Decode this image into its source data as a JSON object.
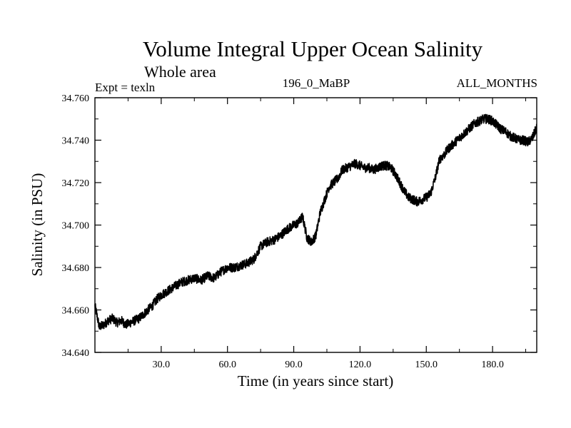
{
  "chart_data": {
    "type": "line",
    "title": "Volume Integral Upper Ocean Salinity",
    "subtitle": "Whole area",
    "header_left": "Expt = texln",
    "header_center": "196_0_MaBP",
    "header_right": "ALL_MONTHS",
    "xlabel": "Time (in years since start)",
    "ylabel": "Salinity (in PSU)",
    "xlim": [
      0,
      200
    ],
    "ylim": [
      34.64,
      34.76
    ],
    "x_ticks": [
      30,
      60,
      90,
      120,
      150,
      180
    ],
    "x_tick_labels": [
      "30.0",
      "60.0",
      "90.0",
      "120.0",
      "150.0",
      "180.0"
    ],
    "y_ticks": [
      34.64,
      34.66,
      34.68,
      34.7,
      34.72,
      34.74,
      34.76
    ],
    "y_tick_labels": [
      "34.640",
      "34.660",
      "34.680",
      "34.700",
      "34.720",
      "34.740",
      "34.760"
    ],
    "grid": false,
    "series": [
      {
        "name": "salinity",
        "noise_amplitude": 0.0022,
        "x": [
          0,
          1,
          2,
          4,
          6,
          8,
          10,
          12,
          14,
          16,
          18,
          20,
          22,
          24,
          26,
          28,
          30,
          33,
          36,
          39,
          42,
          45,
          48,
          51,
          54,
          57,
          60,
          63,
          66,
          69,
          72,
          75,
          78,
          81,
          84,
          87,
          90,
          92,
          94,
          96,
          98,
          100,
          102,
          104,
          106,
          108,
          110,
          112,
          114,
          116,
          118,
          120,
          122,
          124,
          126,
          128,
          130,
          132,
          134,
          136,
          138,
          140,
          142,
          144,
          146,
          148,
          150,
          152,
          154,
          156,
          158,
          160,
          162,
          164,
          166,
          168,
          170,
          172,
          174,
          176,
          178,
          180,
          182,
          184,
          186,
          188,
          190,
          192,
          194,
          196,
          198,
          200
        ],
        "y": [
          34.662,
          34.657,
          34.652,
          34.653,
          34.655,
          34.656,
          34.654,
          34.655,
          34.653,
          34.654,
          34.655,
          34.656,
          34.658,
          34.66,
          34.662,
          34.665,
          34.667,
          34.669,
          34.671,
          34.673,
          34.674,
          34.675,
          34.674,
          34.676,
          34.675,
          34.678,
          34.68,
          34.68,
          34.681,
          34.682,
          34.684,
          34.69,
          34.692,
          34.693,
          34.695,
          34.698,
          34.7,
          34.701,
          34.704,
          34.694,
          34.692,
          34.695,
          34.706,
          34.712,
          34.718,
          34.72,
          34.722,
          34.726,
          34.727,
          34.728,
          34.729,
          34.728,
          34.727,
          34.727,
          34.726,
          34.727,
          34.728,
          34.728,
          34.727,
          34.724,
          34.72,
          34.716,
          34.713,
          34.712,
          34.711,
          34.712,
          34.713,
          34.715,
          34.722,
          34.731,
          34.733,
          34.736,
          34.738,
          34.74,
          34.742,
          34.744,
          34.746,
          34.748,
          34.749,
          34.75,
          34.75,
          34.749,
          34.747,
          34.745,
          34.744,
          34.742,
          34.741,
          34.74,
          34.74,
          34.739,
          34.741,
          34.746
        ]
      }
    ]
  }
}
